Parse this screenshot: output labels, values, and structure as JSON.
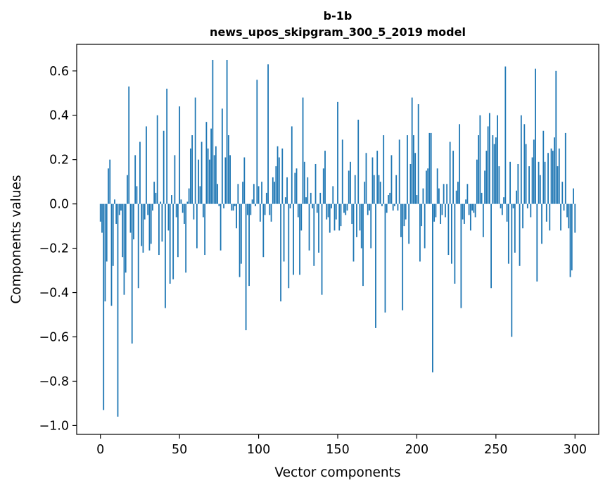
{
  "chart_data": {
    "type": "bar",
    "title": "b-1b",
    "subtitle": "news_upos_skipgram_300_5_2019 model",
    "xlabel": "Vector components",
    "ylabel": "Components values",
    "xlim": [
      -15,
      315
    ],
    "ylim": [
      -1.04,
      0.72
    ],
    "x_ticks": [
      0,
      50,
      100,
      150,
      200,
      250,
      300
    ],
    "y_ticks": [
      -1.0,
      -0.8,
      -0.6,
      -0.4,
      -0.2,
      0.0,
      0.2,
      0.4,
      0.6
    ],
    "y_tick_labels": [
      "−1.0",
      "−0.8",
      "−0.6",
      "−0.4",
      "−0.2",
      "0.0",
      "0.2",
      "0.4",
      "0.6"
    ],
    "bar_color": "#1f77b4",
    "values": [
      -0.08,
      -0.13,
      -0.93,
      -0.44,
      -0.26,
      0.16,
      0.2,
      -0.46,
      -0.28,
      0.02,
      -0.09,
      -0.96,
      -0.05,
      -0.03,
      -0.24,
      -0.41,
      -0.31,
      0.13,
      0.53,
      -0.13,
      -0.63,
      -0.16,
      0.22,
      0.08,
      -0.38,
      0.28,
      -0.19,
      -0.22,
      -0.07,
      0.35,
      -0.05,
      -0.21,
      -0.18,
      -0.03,
      0.1,
      0.05,
      0.4,
      -0.23,
      0.01,
      -0.17,
      0.33,
      -0.47,
      0.52,
      -0.12,
      -0.36,
      0.04,
      -0.34,
      0.22,
      -0.06,
      -0.24,
      0.44,
      0.02,
      -0.04,
      -0.09,
      -0.31,
      0.01,
      0.07,
      0.25,
      0.31,
      -0.07,
      0.48,
      -0.2,
      0.2,
      0.08,
      0.28,
      -0.06,
      -0.23,
      0.37,
      0.25,
      0.2,
      0.34,
      0.65,
      0.22,
      0.26,
      0.09,
      -0.01,
      -0.21,
      0.43,
      -0.02,
      0.21,
      0.65,
      0.31,
      0.22,
      -0.03,
      -0.03,
      -0.01,
      -0.11,
      0.09,
      -0.33,
      -0.27,
      0.1,
      0.21,
      -0.57,
      -0.05,
      -0.37,
      -0.05,
      0.02,
      0.09,
      -0.01,
      0.56,
      0.08,
      -0.08,
      0.1,
      -0.24,
      -0.05,
      0.05,
      0.63,
      -0.05,
      -0.08,
      0.12,
      0.1,
      0.17,
      0.26,
      0.21,
      -0.44,
      0.25,
      -0.26,
      0.03,
      0.12,
      -0.38,
      -0.02,
      0.35,
      -0.32,
      0.14,
      0.16,
      -0.06,
      -0.32,
      -0.12,
      0.48,
      0.19,
      0.03,
      0.12,
      -0.21,
      0.05,
      -0.02,
      -0.28,
      0.18,
      -0.04,
      -0.22,
      0.05,
      -0.41,
      0.16,
      0.24,
      -0.07,
      -0.06,
      -0.13,
      -0.02,
      0.08,
      -0.12,
      -0.07,
      0.46,
      -0.12,
      -0.1,
      0.29,
      -0.04,
      -0.05,
      -0.03,
      0.15,
      0.19,
      -0.09,
      -0.26,
      0.13,
      -0.15,
      0.38,
      -0.12,
      -0.2,
      -0.37,
      0.1,
      0.23,
      -0.05,
      -0.03,
      -0.2,
      0.21,
      0.13,
      -0.56,
      0.24,
      0.13,
      0.1,
      -0.01,
      0.31,
      -0.49,
      -0.04,
      0.04,
      0.05,
      0.22,
      -0.03,
      -0.01,
      0.13,
      -0.03,
      0.29,
      -0.15,
      -0.48,
      -0.1,
      -0.07,
      0.31,
      -0.18,
      0.18,
      0.48,
      0.31,
      0.23,
      0.04,
      0.45,
      -0.26,
      -0.1,
      0.07,
      -0.2,
      0.15,
      0.16,
      0.32,
      0.32,
      -0.76,
      -0.08,
      -0.06,
      0.16,
      0.07,
      -0.09,
      -0.05,
      0.09,
      -0.06,
      0.09,
      -0.23,
      0.28,
      -0.27,
      0.24,
      -0.36,
      0.06,
      0.1,
      0.36,
      -0.47,
      -0.07,
      -0.09,
      0.02,
      0.09,
      -0.05,
      -0.12,
      -0.03,
      -0.04,
      -0.06,
      0.2,
      0.31,
      0.4,
      0.05,
      -0.15,
      0.15,
      0.24,
      0.35,
      0.41,
      -0.38,
      0.31,
      0.27,
      0.3,
      0.4,
      0.17,
      -0.02,
      -0.05,
      0.03,
      0.62,
      -0.08,
      -0.27,
      0.19,
      -0.6,
      -0.02,
      -0.22,
      0.06,
      0.18,
      -0.28,
      0.4,
      -0.11,
      0.36,
      0.27,
      -0.02,
      0.17,
      -0.06,
      0.21,
      0.29,
      0.61,
      -0.35,
      0.19,
      0.13,
      -0.18,
      0.33,
      0.19,
      -0.08,
      0.23,
      -0.12,
      0.25,
      0.24,
      0.3,
      0.6,
      0.17,
      0.25,
      -0.12,
      0.1,
      -0.03,
      0.32,
      -0.06,
      -0.11,
      -0.33,
      -0.3,
      0.07,
      -0.13
    ]
  }
}
